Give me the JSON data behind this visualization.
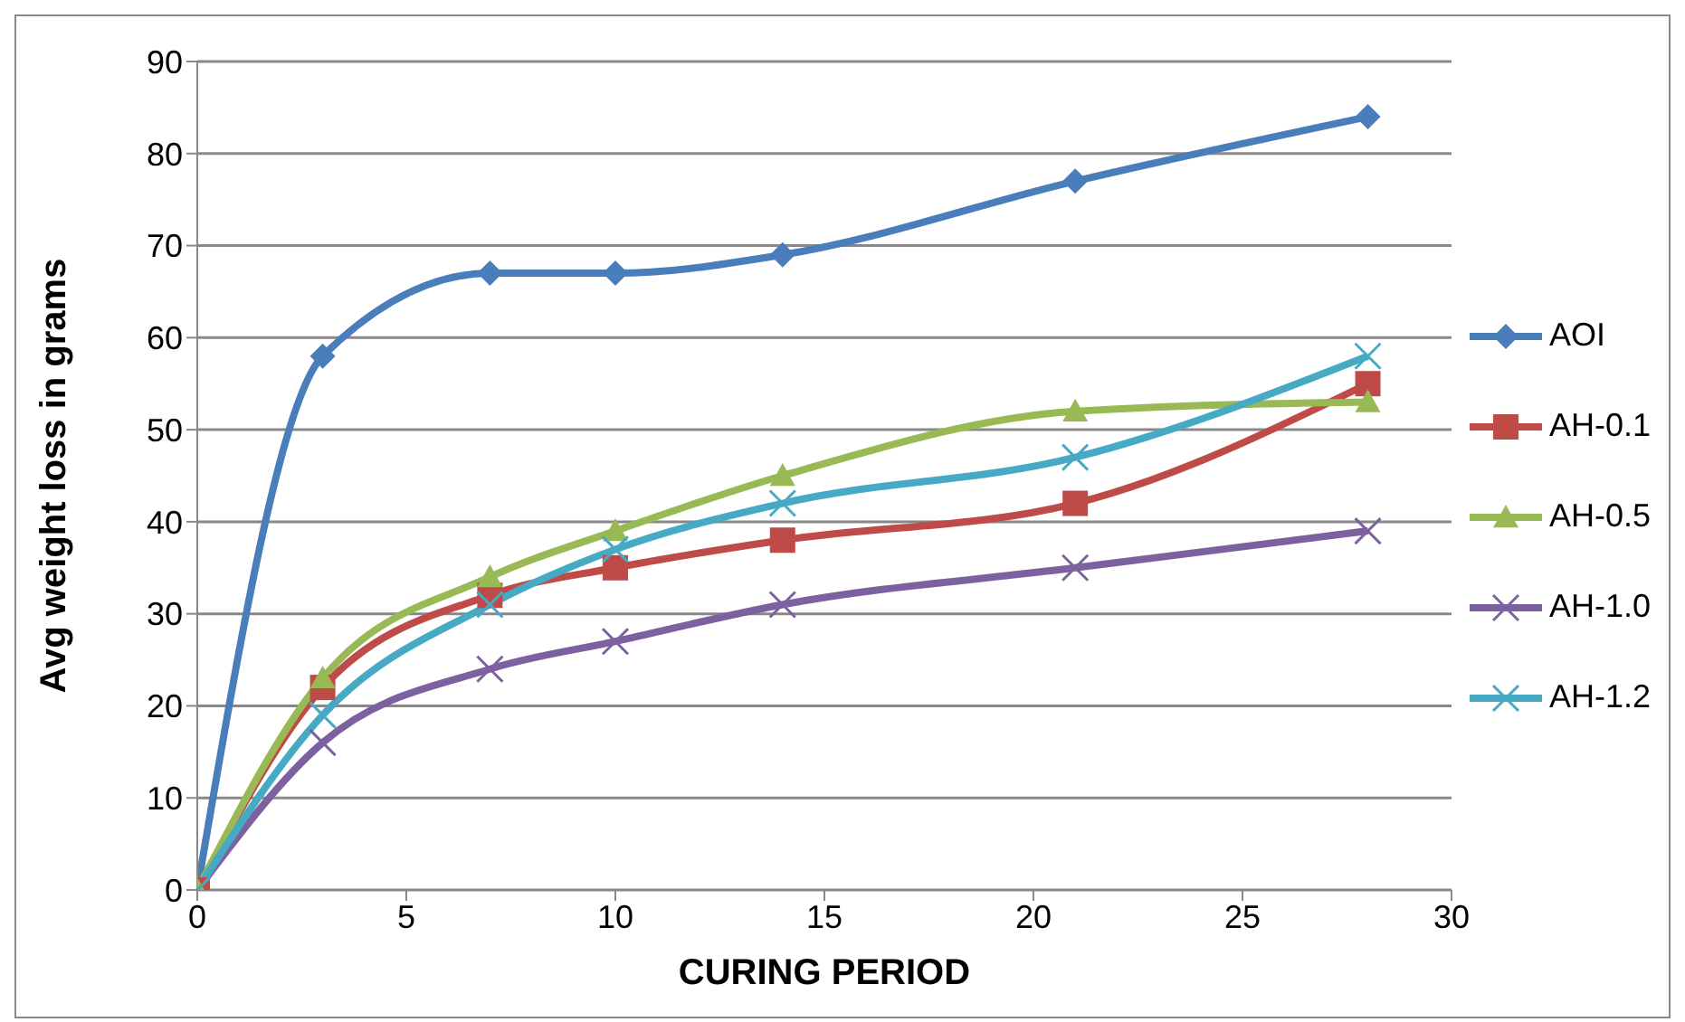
{
  "chart_data": {
    "type": "line",
    "xlabel": "CURING PERIOD",
    "ylabel": "Avg weight loss in grams",
    "x": [
      0,
      3,
      7,
      10,
      14,
      21,
      28
    ],
    "series": [
      {
        "name": "AOI",
        "color": "#4a7ebb",
        "marker": "diamond",
        "values": [
          0,
          58,
          67,
          67,
          69,
          77,
          84
        ]
      },
      {
        "name": "AH-0.1",
        "color": "#be4b48",
        "marker": "square",
        "values": [
          0,
          22,
          32,
          35,
          38,
          42,
          55
        ]
      },
      {
        "name": "AH-0.5",
        "color": "#98b954",
        "marker": "triangle",
        "values": [
          0,
          23,
          34,
          39,
          45,
          52,
          53
        ]
      },
      {
        "name": "AH-1.0",
        "color": "#7d60a0",
        "marker": "cross",
        "values": [
          0,
          16,
          24,
          27,
          31,
          35,
          39
        ]
      },
      {
        "name": "AH-1.2",
        "color": "#46aac5",
        "marker": "cross",
        "values": [
          0,
          19,
          31,
          37,
          42,
          47,
          58
        ]
      }
    ],
    "xlim": [
      0,
      30
    ],
    "xticks": [
      0,
      5,
      10,
      15,
      20,
      25,
      30
    ],
    "ylim": [
      0,
      90
    ],
    "yticks": [
      0,
      10,
      20,
      30,
      40,
      50,
      60,
      70,
      80,
      90
    ],
    "grid": "y",
    "legend": "right",
    "line_style": "solid"
  }
}
